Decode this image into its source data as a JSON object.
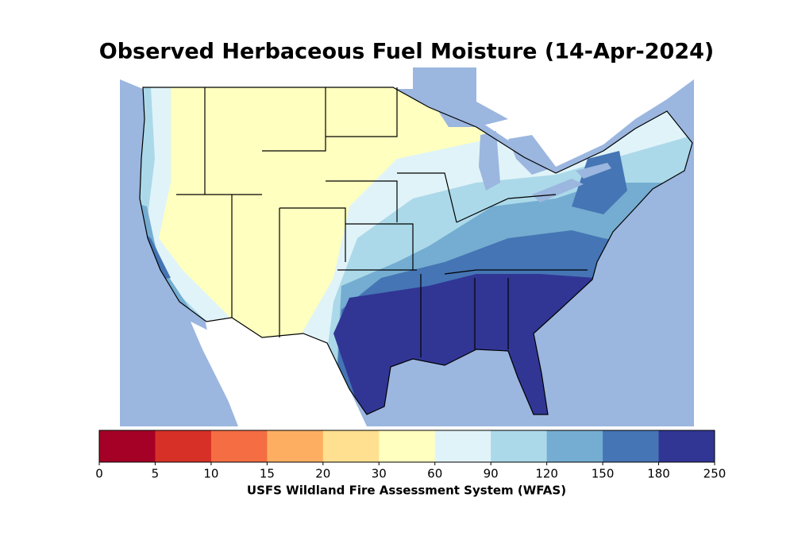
{
  "header": {
    "title": "Observed Herbaceous Fuel Moisture (14-Apr-2024)"
  },
  "colorbar": {
    "ticks": [
      0,
      5,
      10,
      15,
      20,
      30,
      60,
      90,
      120,
      150,
      180,
      250
    ],
    "colors": [
      "#a50026",
      "#d73027",
      "#f46d43",
      "#fdae61",
      "#fee090",
      "#ffffbf",
      "#e0f3f8",
      "#abd9e9",
      "#74add1",
      "#4575b4",
      "#313695"
    ],
    "label": "USFS Wildland Fire Assessment System (WFAS)"
  }
}
